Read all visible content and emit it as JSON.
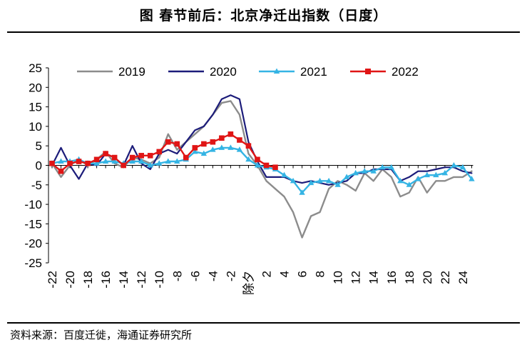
{
  "title": "图  春节前后：北京净迁出指数（日度）",
  "source": "资料来源：百度迁徙，海通证券研究所",
  "chart_data": {
    "type": "line",
    "title": "图  春节前后：北京净迁出指数（日度）",
    "xlabel": "",
    "ylabel": "",
    "ylim": [
      -25,
      25
    ],
    "yticks": [
      25,
      20,
      15,
      10,
      5,
      0,
      -5,
      -10,
      -15,
      -20,
      -25
    ],
    "xlim": [
      -22,
      25
    ],
    "xticks": [
      {
        "x": -22,
        "label": "-22"
      },
      {
        "x": -20,
        "label": "-20"
      },
      {
        "x": -18,
        "label": "-18"
      },
      {
        "x": -16,
        "label": "-16"
      },
      {
        "x": -14,
        "label": "-14"
      },
      {
        "x": -12,
        "label": "-12"
      },
      {
        "x": -10,
        "label": "-10"
      },
      {
        "x": -8,
        "label": "-8"
      },
      {
        "x": -6,
        "label": "-6"
      },
      {
        "x": -4,
        "label": "-4"
      },
      {
        "x": -2,
        "label": "-2"
      },
      {
        "x": 0,
        "label": "除夕"
      },
      {
        "x": 2,
        "label": "2"
      },
      {
        "x": 4,
        "label": "4"
      },
      {
        "x": 6,
        "label": "6"
      },
      {
        "x": 8,
        "label": "8"
      },
      {
        "x": 10,
        "label": "10"
      },
      {
        "x": 12,
        "label": "12"
      },
      {
        "x": 14,
        "label": "14"
      },
      {
        "x": 16,
        "label": "16"
      },
      {
        "x": 18,
        "label": "18"
      },
      {
        "x": 20,
        "label": "20"
      },
      {
        "x": 22,
        "label": "22"
      },
      {
        "x": 24,
        "label": "24"
      }
    ],
    "legend_position": "top",
    "series": [
      {
        "name": "2019",
        "color": "#8c8c8c",
        "marker": "none",
        "x": [
          -22,
          -21,
          -20,
          -19,
          -18,
          -17,
          -16,
          -15,
          -14,
          -13,
          -12,
          -11,
          -10,
          -9,
          -8,
          -7,
          -6,
          -5,
          -4,
          -3,
          -2,
          -1,
          0,
          1,
          2,
          3,
          4,
          5,
          6,
          7,
          8,
          9,
          10,
          11,
          12,
          13,
          14,
          15,
          16,
          17,
          18,
          19,
          20,
          21,
          22,
          23,
          24,
          25
        ],
        "values": [
          0.5,
          -3,
          0,
          1.5,
          0,
          1.5,
          3.5,
          0.5,
          -0.5,
          2,
          1.5,
          0.5,
          2,
          8,
          4,
          6,
          8,
          10,
          13,
          16,
          16.5,
          13,
          3,
          0,
          -4,
          -6,
          -8,
          -12,
          -18.5,
          -13,
          -12,
          -6,
          -4,
          -5,
          -6.5,
          -2,
          -4,
          -1,
          -3,
          -8,
          -7,
          -3,
          -7,
          -4,
          -4,
          -3,
          -3,
          -1.5
        ]
      },
      {
        "name": "2020",
        "color": "#1c1c7a",
        "marker": "none",
        "x": [
          -22,
          -21,
          -20,
          -19,
          -18,
          -17,
          -16,
          -15,
          -14,
          -13,
          -12,
          -11,
          -10,
          -9,
          -8,
          -7,
          -6,
          -5,
          -4,
          -3,
          -2,
          -1,
          0,
          1,
          2,
          3,
          4,
          5,
          6,
          7,
          8,
          9,
          10,
          11,
          12,
          13,
          14,
          15,
          16,
          17,
          18,
          19,
          20,
          21,
          22,
          23,
          24,
          25
        ],
        "values": [
          0,
          4.5,
          0,
          -3.5,
          0.5,
          0,
          3,
          2,
          0,
          5,
          0.5,
          -1,
          3,
          4,
          3,
          6,
          9,
          10,
          13,
          17,
          18,
          17,
          6,
          1,
          -3,
          -3,
          -3,
          -4,
          -4.5,
          -4,
          -4.5,
          -5,
          -4.5,
          -4,
          -2,
          -2,
          -1,
          -1,
          -1,
          -4,
          -3,
          -1.5,
          -1.5,
          -1,
          -0.5,
          -0.5,
          -1.5,
          -2
        ]
      },
      {
        "name": "2021",
        "color": "#35b4e4",
        "marker": "triangle",
        "x": [
          -22,
          -21,
          -20,
          -19,
          -18,
          -17,
          -16,
          -15,
          -14,
          -13,
          -12,
          -11,
          -10,
          -9,
          -8,
          -7,
          -6,
          -5,
          -4,
          -3,
          -2,
          -1,
          0,
          1,
          2,
          3,
          4,
          5,
          6,
          7,
          8,
          9,
          10,
          11,
          12,
          13,
          14,
          15,
          16,
          17,
          18,
          19,
          20,
          21,
          22,
          23,
          24,
          25
        ],
        "values": [
          0.5,
          1,
          1,
          1.5,
          0.5,
          0.5,
          1,
          1,
          0.5,
          1,
          1,
          0,
          0.5,
          1,
          1,
          1.5,
          3.5,
          3,
          4,
          4.5,
          4.5,
          4,
          1.5,
          0,
          -0.5,
          -1,
          -2.5,
          -4,
          -7,
          -4.5,
          -4,
          -4,
          -5,
          -3,
          -2,
          -1.5,
          -1.5,
          -0.5,
          -0.5,
          -4,
          -5,
          -3.5,
          -2.5,
          -2.5,
          -2,
          0,
          -0.5,
          -3.5
        ]
      },
      {
        "name": "2022",
        "color": "#e01515",
        "marker": "square",
        "x": [
          -22,
          -21,
          -20,
          -19,
          -18,
          -17,
          -16,
          -15,
          -14,
          -13,
          -12,
          -11,
          -10,
          -9,
          -8,
          -7,
          -6,
          -5,
          -4,
          -3,
          -2,
          -1,
          0,
          1,
          2,
          3
        ],
        "values": [
          0.5,
          -1.5,
          0.5,
          1,
          0.5,
          1.5,
          3,
          2,
          0,
          2,
          2.5,
          2.5,
          3.5,
          6,
          5.5,
          2,
          4.5,
          5.5,
          6,
          7,
          8,
          6.5,
          5,
          1.5,
          0,
          -0.5
        ]
      }
    ]
  }
}
